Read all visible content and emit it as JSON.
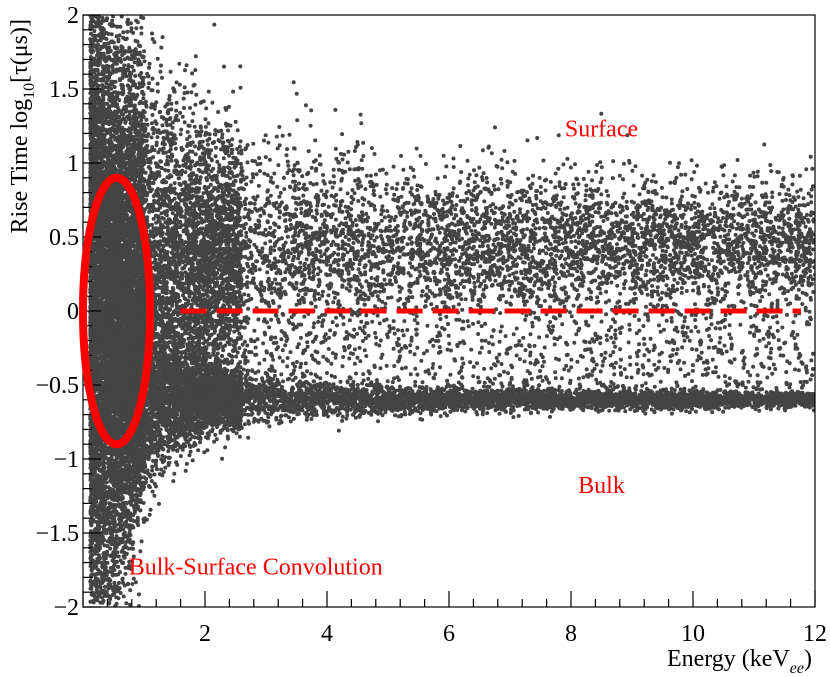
{
  "chart_data": {
    "type": "scatter",
    "title": "",
    "xlabel": {
      "main": "Energy (keV",
      "sub": "ee",
      "close": ")"
    },
    "ylabel": {
      "pre": "Rise Time log",
      "sub": "10",
      "post": "[τ(μs)]"
    },
    "xlim": [
      0,
      12
    ],
    "ylim": [
      -2,
      2
    ],
    "x_ticks": [
      2,
      4,
      6,
      8,
      10,
      12
    ],
    "x_tick_labels": [
      "2",
      "4",
      "6",
      "8",
      "10",
      "12"
    ],
    "y_ticks": [
      -2,
      -1.5,
      -1,
      -0.5,
      0,
      0.5,
      1,
      1.5,
      2
    ],
    "y_tick_labels": [
      "−2",
      "−1.5",
      "−1",
      "−0.5",
      "0",
      "0.5",
      "1",
      "1.5",
      "2"
    ],
    "grid": false,
    "marker_color": "#444444",
    "populations": [
      {
        "name": "surface band",
        "y_center": 0.5,
        "y_spread_at_12keV": 0.2,
        "fraction_at_12keV": 0.45
      },
      {
        "name": "bulk band",
        "y_center": -0.6,
        "y_spread_at_12keV": 0.03,
        "fraction_at_12keV": 0.35
      },
      {
        "name": "intermediate scatter",
        "y_range": [
          -0.6,
          0.5
        ],
        "fraction_at_12keV": 0.2
      }
    ],
    "density_peak_energy_keV": 0.2,
    "threshold_line": {
      "y": 0,
      "x_from": 1.6,
      "x_to": 12,
      "style": "dashed",
      "color": "#ff0000"
    },
    "convolution_region": {
      "x_center": 0.55,
      "y_center": 0,
      "x_half_width": 0.55,
      "y_half_height": 0.9,
      "color": "#ff0000"
    },
    "annotations": [
      {
        "text": "Surface",
        "x": 8.5,
        "y": 1.18,
        "color": "#ff0000"
      },
      {
        "text": "Bulk",
        "x": 8.5,
        "y": -1.23,
        "color": "#ff0000"
      },
      {
        "text": "Bulk-Surface Convolution",
        "x": 0.75,
        "y": -1.78,
        "color": "#ff0000"
      }
    ]
  }
}
